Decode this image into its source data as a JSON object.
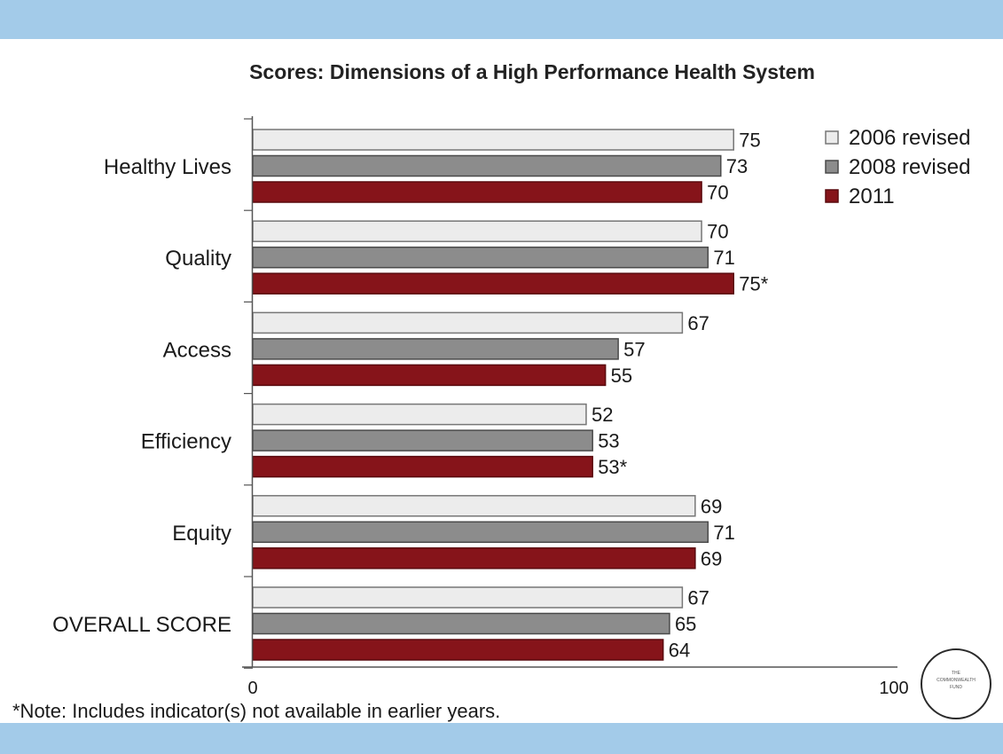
{
  "colors": {
    "band": "#a3cbe9",
    "series_2006": "#ececec",
    "series_2008": "#8c8c8c",
    "series_2011": "#86141a"
  },
  "note": "*Note: Includes indicator(s) not available in earlier years.",
  "logo_text": "THE COMMONWEALTH FUND",
  "chart_data": {
    "type": "bar",
    "orientation": "horizontal",
    "title": "Scores: Dimensions of a High Performance Health System",
    "categories": [
      "Healthy Lives",
      "Quality",
      "Access",
      "Efficiency",
      "Equity",
      "OVERALL SCORE"
    ],
    "series": [
      {
        "name": "2006 revised",
        "values": [
          75,
          70,
          67,
          52,
          69,
          67
        ],
        "labels": [
          "75",
          "70",
          "67",
          "52",
          "69",
          "67"
        ]
      },
      {
        "name": "2008 revised",
        "values": [
          73,
          71,
          57,
          53,
          71,
          65
        ],
        "labels": [
          "73",
          "71",
          "57",
          "53",
          "71",
          "65"
        ]
      },
      {
        "name": "2011",
        "values": [
          70,
          75,
          55,
          53,
          69,
          64
        ],
        "labels": [
          "70",
          "75*",
          "55",
          "53*",
          "69",
          "64"
        ]
      }
    ],
    "xlim": [
      0,
      100
    ],
    "xticks": [
      "0",
      "100"
    ],
    "legend_position": "top-right",
    "grid": false
  }
}
